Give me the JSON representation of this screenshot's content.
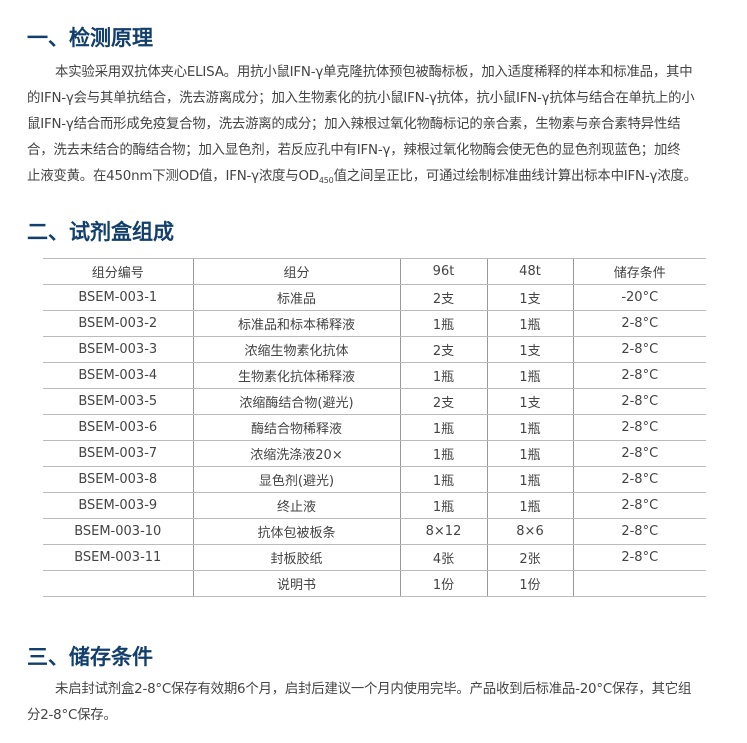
{
  "section1": {
    "title": "一、检测原理",
    "lines": [
      "本实验采用双抗体夹心ELISA。用抗小鼠IFN-γ单克隆抗体预包被酶标板，加入适度稀释的样本和标准品，其中",
      "的IFN-γ会与其单抗结合，洗去游离成分；加入生物素化的抗小鼠IFN-γ抗体，抗小鼠IFN-γ抗体与结合在单抗上的小",
      "鼠IFN-γ结合而形成免疫复合物，洗去游离的成分；加入辣根过氧化物酶标记的亲合素，生物素与亲合素特异性结",
      "合，洗去未结合的酶结合物；加入显色剂，若反应孔中有IFN-γ，辣根过氧化物酶会使无色的显色剂现蓝色；加终"
    ],
    "last_line": {
      "pre": "止液变黄。在450nm下测OD值，IFN-γ浓度与OD",
      "sub": "450",
      "post": "值之间呈正比，可通过绘制标准曲线计算出标本中IFN-γ浓度。"
    }
  },
  "section2": {
    "title": "二、试剂盒组成",
    "headers": [
      "组分编号",
      "组分",
      "96t",
      "48t",
      "储存条件"
    ],
    "rows": [
      [
        "BSEM-003-1",
        "标准品",
        "2支",
        "1支",
        "-20°C"
      ],
      [
        "BSEM-003-2",
        "标准品和标本稀释液",
        "1瓶",
        "1瓶",
        "2-8°C"
      ],
      [
        "BSEM-003-3",
        "浓缩生物素化抗体",
        "2支",
        "1支",
        "2-8°C"
      ],
      [
        "BSEM-003-4",
        "生物素化抗体稀释液",
        "1瓶",
        "1瓶",
        "2-8°C"
      ],
      [
        "BSEM-003-5",
        "浓缩酶结合物(避光)",
        "2支",
        "1支",
        "2-8°C"
      ],
      [
        "BSEM-003-6",
        "酶结合物稀释液",
        "1瓶",
        "1瓶",
        "2-8°C"
      ],
      [
        "BSEM-003-7",
        "浓缩洗涤液20×",
        "1瓶",
        "1瓶",
        "2-8°C"
      ],
      [
        "BSEM-003-8",
        "显色剂(避光)",
        "1瓶",
        "1瓶",
        "2-8°C"
      ],
      [
        "BSEM-003-9",
        "终止液",
        "1瓶",
        "1瓶",
        "2-8°C"
      ],
      [
        "BSEM-003-10",
        "抗体包被板条",
        "8×12",
        "8×6",
        "2-8°C"
      ],
      [
        "BSEM-003-11",
        "封板胶纸",
        "4张",
        "2张",
        "2-8°C"
      ],
      [
        "",
        "说明书",
        "1份",
        "1份",
        ""
      ]
    ]
  },
  "section3": {
    "title": "三、储存条件",
    "lines": [
      "未启封试剂盒2-8°C保存有效期6个月，启封后建议一个月内使用完毕。产品收到后标准品-20°C保存，其它组",
      "分2-8°C保存。"
    ]
  }
}
